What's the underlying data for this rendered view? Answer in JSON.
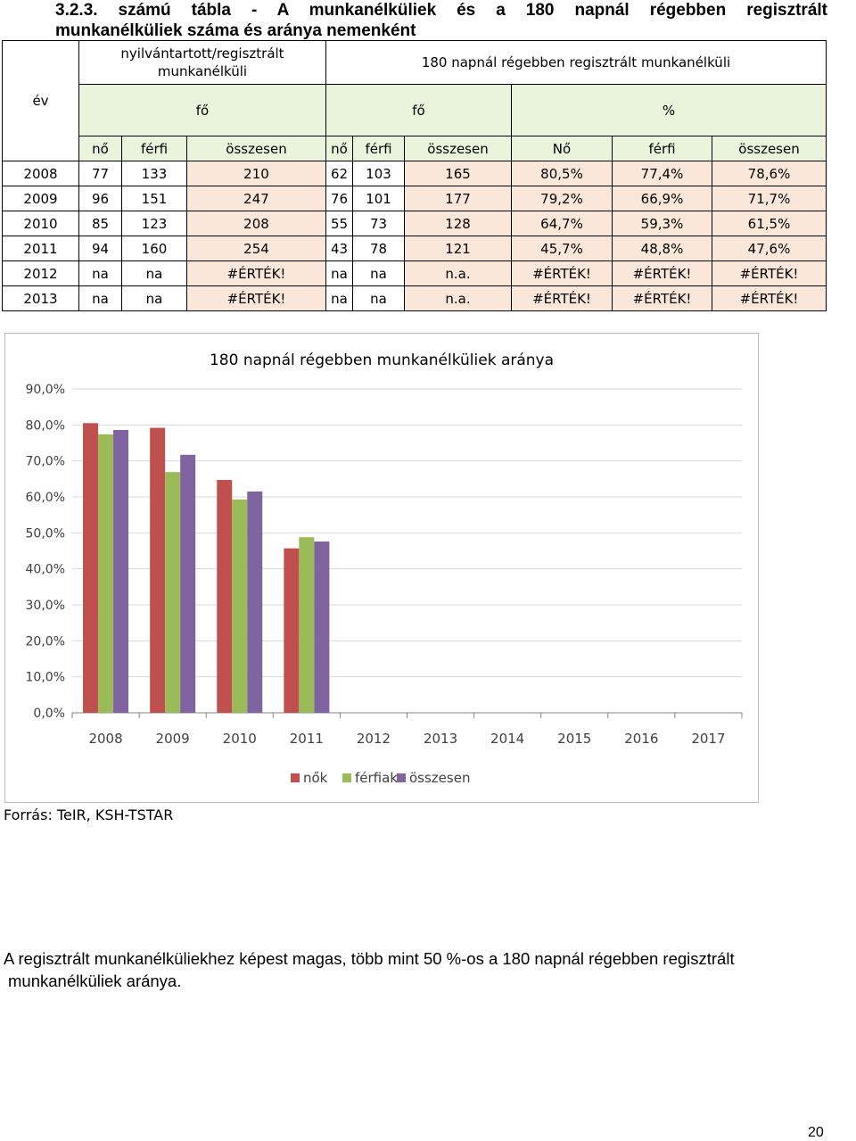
{
  "title_line1": "3.2.3. számú tábla - A munkanélküliek és a 180 napnál régebben regisztrált",
  "title_line2": "munkanélküliek száma és aránya nemenként",
  "table": {
    "h_ev": "év",
    "h_nyilv": "nyilvántartott/regisztrált munkanélküli",
    "h_180": "180 napnál régebben regisztrált munkanélküli",
    "h_fo1": "fő",
    "h_fo2": "fő",
    "h_pct": "%",
    "sub": [
      "nő",
      "férfi",
      "összesen",
      "nő",
      "férfi",
      "összesen",
      "Nő",
      "férfi",
      "összesen"
    ],
    "rows": [
      [
        "2008",
        "77",
        "133",
        "210",
        "62",
        "103",
        "165",
        "80,5%",
        "77,4%",
        "78,6%"
      ],
      [
        "2009",
        "96",
        "151",
        "247",
        "76",
        "101",
        "177",
        "79,2%",
        "66,9%",
        "71,7%"
      ],
      [
        "2010",
        "85",
        "123",
        "208",
        "55",
        "73",
        "128",
        "64,7%",
        "59,3%",
        "61,5%"
      ],
      [
        "2011",
        "94",
        "160",
        "254",
        "43",
        "78",
        "121",
        "45,7%",
        "48,8%",
        "47,6%"
      ],
      [
        "2012",
        "na",
        "na",
        "#ÉRTÉK!",
        "na",
        "na",
        "n.a.",
        "#ÉRTÉK!",
        "#ÉRTÉK!",
        "#ÉRTÉK!"
      ],
      [
        "2013",
        "na",
        "na",
        "#ÉRTÉK!",
        "na",
        "na",
        "n.a.",
        "#ÉRTÉK!",
        "#ÉRTÉK!",
        "#ÉRTÉK!"
      ]
    ]
  },
  "chart_data": {
    "type": "bar",
    "title": "180 napnál régebben munkanélküliek aránya",
    "categories": [
      "2008",
      "2009",
      "2010",
      "2011",
      "2012",
      "2013",
      "2014",
      "2015",
      "2016",
      "2017"
    ],
    "series": [
      {
        "name": "nők",
        "color": "#c0504d",
        "values": [
          80.5,
          79.2,
          64.7,
          45.7,
          null,
          null,
          null,
          null,
          null,
          null
        ]
      },
      {
        "name": "férfiak",
        "color": "#9bbb59",
        "values": [
          77.4,
          66.9,
          59.3,
          48.8,
          null,
          null,
          null,
          null,
          null,
          null
        ]
      },
      {
        "name": "összesen",
        "color": "#8064a2",
        "values": [
          78.6,
          71.7,
          61.5,
          47.6,
          null,
          null,
          null,
          null,
          null,
          null
        ]
      }
    ],
    "ylim": [
      0,
      90
    ],
    "yticks": [
      "0,0%",
      "10,0%",
      "20,0%",
      "30,0%",
      "40,0%",
      "50,0%",
      "60,0%",
      "70,0%",
      "80,0%",
      "90,0%"
    ],
    "grid": true,
    "legend": "bottom"
  },
  "source": "Forrás: TeIR, KSH-TSTAR",
  "para_line1": "A regisztrált munkanélküliekhez képest magas, több mint 50 %-os a 180 napnál régebben regisztrált",
  "para_line2": "munkanélküliek aránya.",
  "page_number": "20"
}
